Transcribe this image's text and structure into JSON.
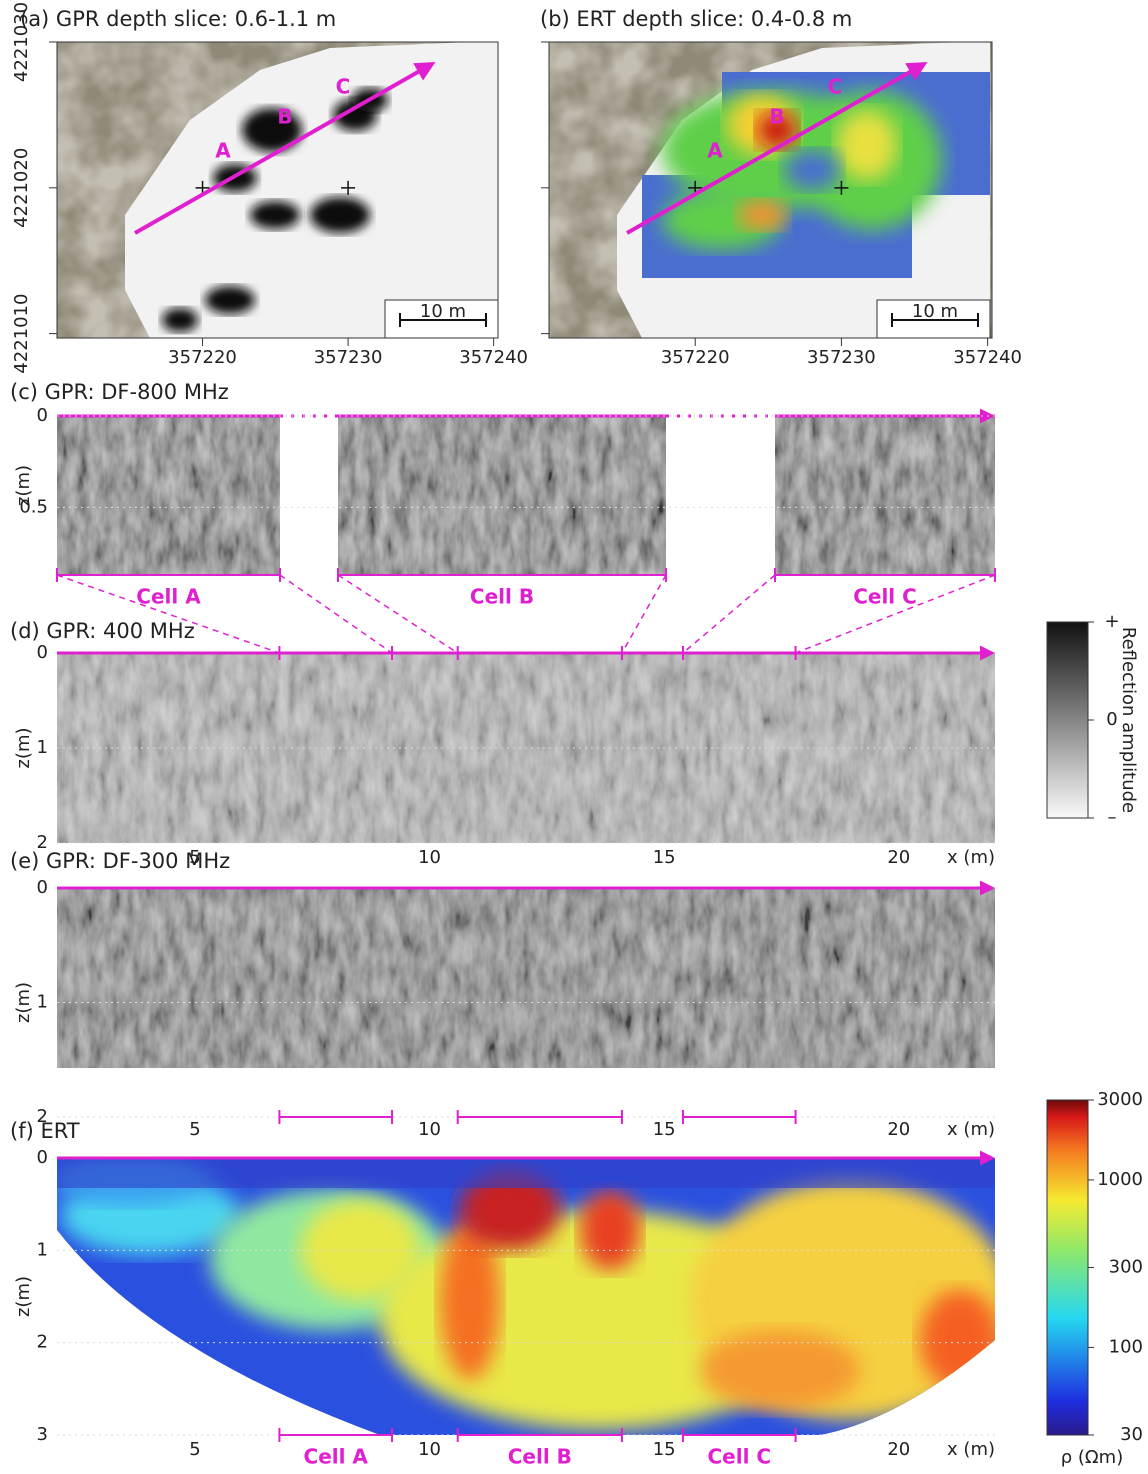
{
  "panels": {
    "a": {
      "title": "(a) GPR depth slice: 0.6-1.1 m",
      "labels": [
        "A",
        "B",
        "C"
      ],
      "scale_bar": "10 m",
      "xticks": [
        357220,
        357230,
        357240
      ],
      "xlim": [
        357210,
        357240.3
      ],
      "yticks": [
        4221010,
        4221020,
        4221030
      ],
      "ylim": [
        4221009.7,
        4221030
      ]
    },
    "b": {
      "title": "(b) ERT depth slice: 0.4-0.8 m",
      "labels": [
        "A",
        "B",
        "C"
      ],
      "scale_bar": "10 m",
      "xticks": [
        357220,
        357230,
        357240
      ],
      "xlim": [
        357210,
        357240.3
      ],
      "yticks": [
        4221010,
        4221020,
        4221030
      ],
      "ylim": [
        4221009.7,
        4221030
      ]
    },
    "c": {
      "title": "(c) GPR: DF-800 MHz",
      "ylabel": "z(m)",
      "yticks": [
        0,
        0.5
      ],
      "ylim": [
        0,
        0.87
      ]
    },
    "d": {
      "title": "(d) GPR: 400 MHz",
      "ylabel": "z(m)",
      "yticks": [
        0,
        1,
        2
      ],
      "ylim": [
        0,
        2
      ],
      "xticks": [
        5,
        10,
        15,
        20
      ],
      "xlabel": "x (m)",
      "xlim": [
        2.06,
        22.05
      ]
    },
    "e": {
      "title": "(e) GPR: DF-300 MHz",
      "ylabel": "z(m)",
      "yticks": [
        0,
        1,
        2
      ],
      "ylim": [
        0,
        2
      ],
      "xticks": [
        5,
        10,
        15,
        20
      ],
      "xlabel": "x (m)",
      "xlim": [
        2.06,
        22.05
      ]
    },
    "f": {
      "title": "(f) ERT",
      "ylabel": "z(m)",
      "yticks": [
        0,
        1,
        2,
        3
      ],
      "ylim": [
        0,
        3
      ],
      "xticks": [
        5,
        10,
        15,
        20
      ],
      "xlabel": "x (m)",
      "xlim": [
        2.06,
        22.05
      ]
    }
  },
  "cells": [
    {
      "label": "Cell A",
      "x": [
        6.8,
        9.2
      ]
    },
    {
      "label": "Cell B",
      "x": [
        10.6,
        14.1
      ]
    },
    {
      "label": "Cell C",
      "x": [
        15.4,
        17.8
      ]
    }
  ],
  "colorbar_amplitude": {
    "label": "Reflection amplitude",
    "lim": [
      -1,
      1
    ],
    "ticks": [
      {
        "value": 1,
        "label": "+"
      },
      0,
      {
        "value": -1,
        "label": "–"
      }
    ]
  },
  "colorbar_resistivity": {
    "label": "ρ (Ωm)",
    "lim": [
      30,
      3000
    ],
    "scale": "log",
    "ticks": [
      30,
      100,
      300,
      1000,
      3000
    ]
  }
}
